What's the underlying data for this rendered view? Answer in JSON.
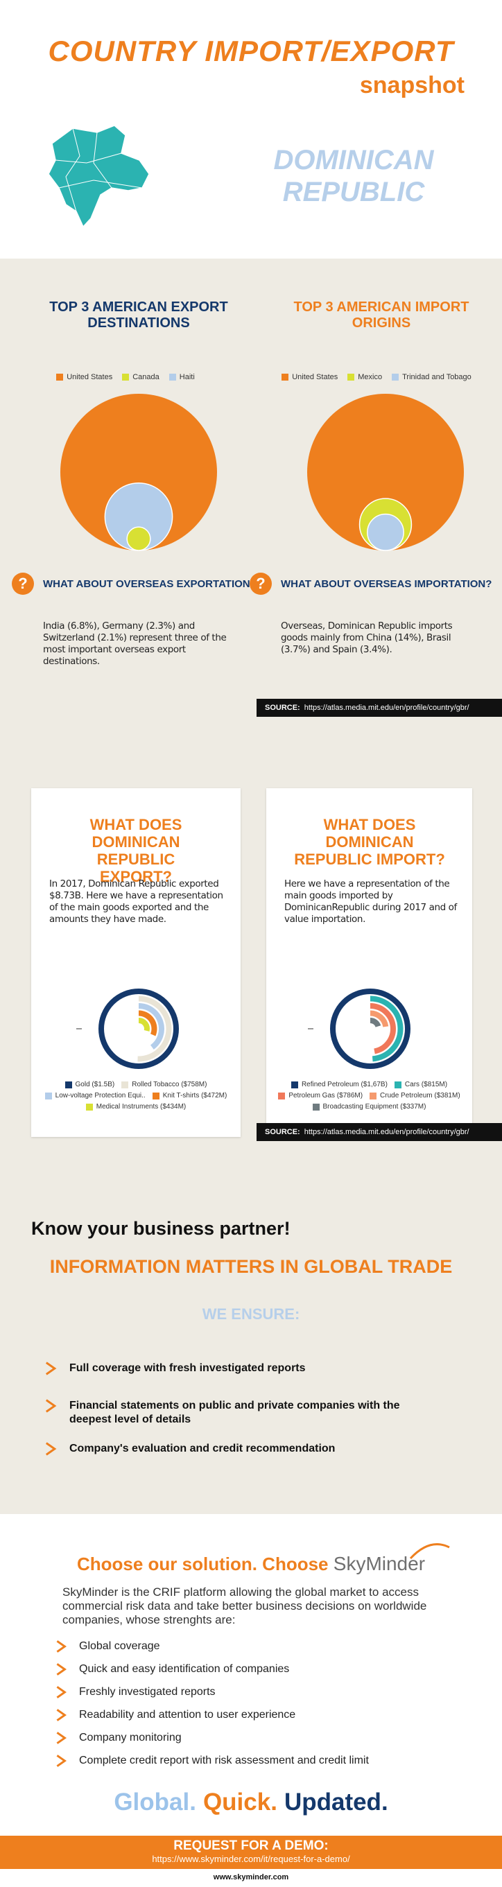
{
  "header": {
    "title": "COUNTRY IMPORT/EXPORT",
    "subtitle": "snapshot",
    "country": "DOMINICAN REPUBLIC"
  },
  "chart_data": [
    {
      "type": "circles",
      "title": "TOP 3 AMERICAN EXPORT DESTINATIONS",
      "categories": [
        "United States",
        "Canada",
        "Haiti"
      ],
      "values": [
        54,
        1.2,
        10
      ],
      "colors": [
        "#ee7f1e",
        "#d8e033",
        "#b3cdea"
      ]
    },
    {
      "type": "circles",
      "title": "TOP 3 AMERICAN IMPORT ORIGINS",
      "categories": [
        "United States",
        "Mexico",
        "Trinidad and Tobago"
      ],
      "values": [
        41,
        4.5,
        2.2
      ],
      "colors": [
        "#ee7f1e",
        "#d8e033",
        "#b3cdea"
      ]
    },
    {
      "type": "radial",
      "title": "WHAT DOES DOMINICAN REPUBLIC EXPORT?",
      "description": "In 2017, Dominican Republic exported $8.73B.  Here we have a representation of the main goods exported and the amounts they have made.",
      "categories": [
        "Gold ($1.5B)",
        "Rolled Tobacco ($758M)",
        "Low-voltage Protection Equi..",
        "Knit T-shirts ($472M)",
        "Medical Instruments ($434M)"
      ],
      "values": [
        1500,
        758,
        600,
        472,
        434
      ],
      "colors": [
        "#14386b",
        "#e9e4d6",
        "#b3cdea",
        "#ee7f1e",
        "#d8e033"
      ]
    },
    {
      "type": "radial",
      "title": "WHAT DOES DOMINICAN REPUBLIC IMPORT?",
      "description": "Here we have a representation of the main goods imported by DominicanRepublic during 2017 and of value importation.",
      "categories": [
        "Refined Petroleum ($1,67B)",
        "Cars ($815M)",
        "Petroleum Gas ($786M)",
        "Crude Petroleum ($381M)",
        "Broadcasting Equipment ($337M)"
      ],
      "values": [
        1670,
        815,
        786,
        381,
        337
      ],
      "colors": [
        "#14386b",
        "#2bb3b1",
        "#f0785a",
        "#f59a6e",
        "#6f7b80"
      ]
    }
  ],
  "overseas": [
    {
      "question": "WHAT ABOUT OVERSEAS EXPORTATION?",
      "text": "India  (6.8%), Germany (2.3%) and Switzerland (2.1%) represent three of the most important overseas export destinations."
    },
    {
      "question": "WHAT ABOUT OVERSEAS IMPORTATION?",
      "text": "Overseas, Dominican Republic imports goods mainly from China (14%), Brasil (3.7%) and Spain (3.4%)."
    }
  ],
  "source": {
    "label": "SOURCE:",
    "url": "https://atlas.media.mit.edu/en/profile/country/gbr/"
  },
  "partner": {
    "heading": "Know your business partner!",
    "subheading": "INFORMATION MATTERS IN GLOBAL TRADE",
    "ensure": "WE ENSURE:",
    "bullets": [
      "Full coverage with fresh investigated reports",
      "Financial statements on public and private companies with the deepest level of details",
      "Company's evaluation and credit recommendation"
    ]
  },
  "solution": {
    "heading": "Choose our solution. Choose",
    "logo": "SkyMinder",
    "text": "SkyMinder is the CRIF platform allowing the global market to access commercial risk data and take better business decisions on worldwide companies, whose strenghts are:",
    "items": [
      "Global coverage",
      "Quick and easy identification of companies",
      "Freshly investigated reports",
      "Readability and attention to user experience",
      "Company monitoring",
      "Complete credit report with risk assessment and credit limit"
    ],
    "tagline": [
      {
        "text": "Global.",
        "color": "#9cc3ea"
      },
      {
        "text": "Quick.",
        "color": "#ee7f1e"
      },
      {
        "text": "Updated.",
        "color": "#14386b"
      }
    ]
  },
  "demo": {
    "label": "REQUEST FOR A DEMO:",
    "url": "https://www.skyminder.com/it/request-for-a-demo/"
  },
  "footer": {
    "site": "www.skyminder.com"
  }
}
